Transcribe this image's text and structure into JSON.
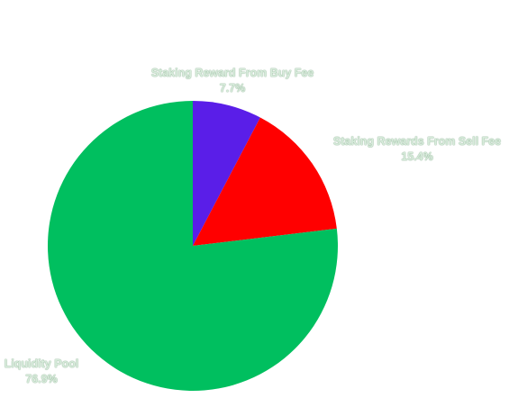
{
  "chart_data": {
    "type": "pie",
    "title": "",
    "categories": [
      "Staking Reward From Buy Fee",
      "Staking Rewards From Sell Fee",
      "Liquidity Pool"
    ],
    "values": [
      7.7,
      15.4,
      76.9
    ],
    "value_labels": [
      "7.7%",
      "15.4%",
      "76.9%"
    ],
    "colors": [
      "#5a1ee8",
      "#ff0000",
      "#00bf5f"
    ],
    "start_angle": "12 o'clock",
    "direction": "clockwise"
  }
}
